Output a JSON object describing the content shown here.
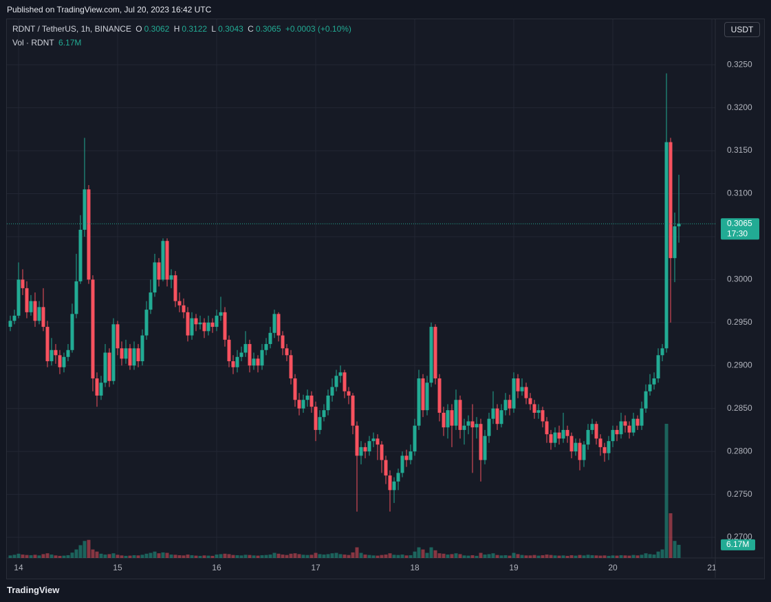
{
  "published": "Published on TradingView.com, Jul 20, 2023 16:42 UTC",
  "brand": "TradingView",
  "chart_data": {
    "type": "candlestick",
    "title": "RDNT / TetherUS, 1h, BINANCE",
    "ohlc_labels": [
      "O",
      "H",
      "L",
      "C"
    ],
    "change": "+0.0003 (+0.10%)",
    "volume_title": "Vol · RDNT",
    "volume_label": "6.17M",
    "currency": "USDT",
    "countdown": "17:30",
    "up_color": "#22ab94",
    "down_color": "#f7525f",
    "grid": true,
    "xlim": [
      -2.83,
      168.83
    ],
    "xticks": [
      {
        "value": 0,
        "label": "14"
      },
      {
        "value": 24,
        "label": "15"
      },
      {
        "value": 48,
        "label": "16"
      },
      {
        "value": 72,
        "label": "17"
      },
      {
        "value": 96,
        "label": "18"
      },
      {
        "value": 120,
        "label": "19"
      },
      {
        "value": 144,
        "label": "20"
      },
      {
        "value": 168,
        "label": "21"
      }
    ],
    "ylim": [
      0.2676,
      0.3303
    ],
    "yticks": [
      {
        "value": 0.27,
        "label": "0.2700"
      },
      {
        "value": 0.275,
        "label": "0.2750"
      },
      {
        "value": 0.28,
        "label": "0.2800"
      },
      {
        "value": 0.285,
        "label": "0.2850"
      },
      {
        "value": 0.29,
        "label": "0.2900"
      },
      {
        "value": 0.295,
        "label": "0.2950"
      },
      {
        "value": 0.3,
        "label": "0.3000"
      },
      {
        "value": 0.305,
        "label": "0.3050"
      },
      {
        "value": 0.31,
        "label": "0.3100"
      },
      {
        "value": 0.315,
        "label": "0.3150"
      },
      {
        "value": 0.32,
        "label": "0.3200"
      },
      {
        "value": 0.325,
        "label": "0.3250"
      }
    ],
    "x": [
      -2,
      -1,
      0,
      1,
      2,
      3,
      4,
      5,
      6,
      7,
      8,
      9,
      10,
      11,
      12,
      13,
      14,
      15,
      16,
      17,
      18,
      19,
      20,
      21,
      22,
      23,
      24,
      25,
      26,
      27,
      28,
      29,
      30,
      31,
      32,
      33,
      34,
      35,
      36,
      37,
      38,
      39,
      40,
      41,
      42,
      43,
      44,
      45,
      46,
      47,
      48,
      49,
      50,
      51,
      52,
      53,
      54,
      55,
      56,
      57,
      58,
      59,
      60,
      61,
      62,
      63,
      64,
      65,
      66,
      67,
      68,
      69,
      70,
      71,
      72,
      73,
      74,
      75,
      76,
      77,
      78,
      79,
      80,
      81,
      82,
      83,
      84,
      85,
      86,
      87,
      88,
      89,
      90,
      91,
      92,
      93,
      94,
      95,
      96,
      97,
      98,
      99,
      100,
      101,
      102,
      103,
      104,
      105,
      106,
      107,
      108,
      109,
      110,
      111,
      112,
      113,
      114,
      115,
      116,
      117,
      118,
      119,
      120,
      121,
      122,
      123,
      124,
      125,
      126,
      127,
      128,
      129,
      130,
      131,
      132,
      133,
      134,
      135,
      136,
      137,
      138,
      139,
      140,
      141,
      142,
      143,
      144,
      145,
      146,
      147,
      148,
      149,
      150,
      151,
      152,
      153,
      154,
      155,
      156,
      157,
      158,
      159,
      160
    ],
    "open": [
      0.2945,
      0.2952,
      0.2958,
      0.3,
      0.299,
      0.2962,
      0.2975,
      0.2952,
      0.2968,
      0.2945,
      0.2905,
      0.2918,
      0.2912,
      0.2898,
      0.291,
      0.2918,
      0.296,
      0.2998,
      0.3058,
      0.3105,
      0.3,
      0.2885,
      0.2865,
      0.288,
      0.2915,
      0.2882,
      0.2948,
      0.292,
      0.2908,
      0.292,
      0.29,
      0.292,
      0.2905,
      0.2935,
      0.2965,
      0.2985,
      0.302,
      0.3,
      0.3045,
      0.3,
      0.3005,
      0.2975,
      0.297,
      0.2962,
      0.2935,
      0.2955,
      0.2948,
      0.295,
      0.294,
      0.295,
      0.2945,
      0.2958,
      0.2962,
      0.293,
      0.2905,
      0.2898,
      0.291,
      0.2915,
      0.2925,
      0.29,
      0.2908,
      0.29,
      0.2918,
      0.2925,
      0.2938,
      0.296,
      0.2935,
      0.292,
      0.2912,
      0.2885,
      0.286,
      0.285,
      0.286,
      0.2865,
      0.2852,
      0.2825,
      0.284,
      0.2848,
      0.2865,
      0.2875,
      0.2888,
      0.2892,
      0.287,
      0.2865,
      0.283,
      0.2795,
      0.2805,
      0.28,
      0.2812,
      0.2815,
      0.2808,
      0.279,
      0.2772,
      0.2755,
      0.2765,
      0.2775,
      0.2795,
      0.279,
      0.28,
      0.283,
      0.2885,
      0.2848,
      0.288,
      0.2945,
      0.2885,
      0.2845,
      0.2828,
      0.2848,
      0.283,
      0.286,
      0.2825,
      0.283,
      0.2835,
      0.2828,
      0.2832,
      0.279,
      0.2818,
      0.2838,
      0.285,
      0.2832,
      0.2848,
      0.286,
      0.285,
      0.2885,
      0.287,
      0.2875,
      0.2862,
      0.2855,
      0.2845,
      0.2848,
      0.2835,
      0.282,
      0.281,
      0.2822,
      0.2815,
      0.2825,
      0.2818,
      0.28,
      0.281,
      0.279,
      0.2808,
      0.2825,
      0.2832,
      0.2815,
      0.2805,
      0.2798,
      0.2812,
      0.2825,
      0.282,
      0.2835,
      0.283,
      0.2822,
      0.2838,
      0.283,
      0.285,
      0.287,
      0.2878,
      0.2885,
      0.2912,
      0.292,
      0.316,
      0.3025,
      0.3062
    ],
    "high": [
      0.2958,
      0.2965,
      0.302,
      0.3012,
      0.2998,
      0.2982,
      0.2985,
      0.2975,
      0.299,
      0.2952,
      0.2932,
      0.2925,
      0.2918,
      0.2915,
      0.2925,
      0.2972,
      0.303,
      0.3075,
      0.3165,
      0.311,
      0.3005,
      0.2892,
      0.2888,
      0.2925,
      0.292,
      0.2955,
      0.2952,
      0.2928,
      0.293,
      0.2925,
      0.2928,
      0.2925,
      0.2942,
      0.2975,
      0.3,
      0.303,
      0.3025,
      0.3048,
      0.3048,
      0.3012,
      0.301,
      0.2985,
      0.2978,
      0.2968,
      0.2962,
      0.296,
      0.2958,
      0.2955,
      0.2958,
      0.2955,
      0.2965,
      0.298,
      0.2968,
      0.2935,
      0.2912,
      0.2918,
      0.2922,
      0.294,
      0.293,
      0.2915,
      0.2912,
      0.2925,
      0.2932,
      0.2945,
      0.2965,
      0.2962,
      0.294,
      0.2925,
      0.2918,
      0.289,
      0.2868,
      0.2866,
      0.2872,
      0.287,
      0.2858,
      0.2848,
      0.2855,
      0.2872,
      0.2885,
      0.2895,
      0.29,
      0.2895,
      0.2875,
      0.2868,
      0.2835,
      0.2812,
      0.281,
      0.2818,
      0.2822,
      0.282,
      0.2812,
      0.2795,
      0.2778,
      0.277,
      0.278,
      0.28,
      0.2802,
      0.2808,
      0.2838,
      0.2895,
      0.289,
      0.2888,
      0.295,
      0.2948,
      0.289,
      0.2852,
      0.2855,
      0.2855,
      0.2872,
      0.2865,
      0.2838,
      0.2842,
      0.2855,
      0.284,
      0.2838,
      0.2825,
      0.2845,
      0.287,
      0.2855,
      0.2855,
      0.2868,
      0.2866,
      0.2892,
      0.289,
      0.2885,
      0.288,
      0.2868,
      0.286,
      0.2855,
      0.2852,
      0.284,
      0.2825,
      0.2828,
      0.283,
      0.2845,
      0.283,
      0.2822,
      0.2815,
      0.2815,
      0.2812,
      0.2832,
      0.2838,
      0.2835,
      0.282,
      0.281,
      0.2818,
      0.283,
      0.283,
      0.2845,
      0.2842,
      0.2835,
      0.2845,
      0.2842,
      0.2858,
      0.2878,
      0.289,
      0.2892,
      0.292,
      0.2925,
      0.324,
      0.3165,
      0.3078,
      0.3122
    ],
    "low": [
      0.294,
      0.2948,
      0.2955,
      0.2982,
      0.2955,
      0.2958,
      0.2945,
      0.2948,
      0.294,
      0.2898,
      0.29,
      0.2902,
      0.289,
      0.2892,
      0.2905,
      0.2915,
      0.2955,
      0.2995,
      0.305,
      0.2995,
      0.287,
      0.2852,
      0.286,
      0.2875,
      0.2875,
      0.2878,
      0.2912,
      0.29,
      0.2902,
      0.2895,
      0.2895,
      0.2898,
      0.29,
      0.293,
      0.296,
      0.298,
      0.2992,
      0.2998,
      0.2992,
      0.299,
      0.2968,
      0.2962,
      0.2955,
      0.2928,
      0.293,
      0.294,
      0.2942,
      0.2932,
      0.2935,
      0.2938,
      0.294,
      0.2952,
      0.2922,
      0.2898,
      0.289,
      0.2892,
      0.2905,
      0.291,
      0.2892,
      0.2895,
      0.2892,
      0.2895,
      0.2912,
      0.292,
      0.2932,
      0.2928,
      0.2912,
      0.2905,
      0.2878,
      0.2852,
      0.2842,
      0.2845,
      0.2852,
      0.2845,
      0.2812,
      0.282,
      0.2835,
      0.2842,
      0.2858,
      0.287,
      0.288,
      0.2862,
      0.2855,
      0.282,
      0.273,
      0.2785,
      0.2792,
      0.2795,
      0.2805,
      0.279,
      0.2775,
      0.2762,
      0.273,
      0.274,
      0.2755,
      0.277,
      0.2782,
      0.2785,
      0.2795,
      0.2825,
      0.284,
      0.2842,
      0.2875,
      0.2878,
      0.2835,
      0.2818,
      0.2815,
      0.2805,
      0.2825,
      0.2815,
      0.2808,
      0.282,
      0.2775,
      0.2815,
      0.2765,
      0.2785,
      0.281,
      0.2832,
      0.2825,
      0.2828,
      0.2842,
      0.2842,
      0.2845,
      0.2862,
      0.2865,
      0.2855,
      0.2848,
      0.2838,
      0.2838,
      0.2828,
      0.281,
      0.2802,
      0.2805,
      0.2808,
      0.281,
      0.281,
      0.2792,
      0.2795,
      0.2778,
      0.2782,
      0.2802,
      0.282,
      0.2808,
      0.2795,
      0.2788,
      0.279,
      0.2805,
      0.2812,
      0.2815,
      0.2822,
      0.2815,
      0.2818,
      0.2825,
      0.2825,
      0.2845,
      0.2865,
      0.2872,
      0.288,
      0.2905,
      0.2915,
      0.295,
      0.2997,
      0.3043
    ],
    "close": [
      0.2952,
      0.2958,
      0.3,
      0.299,
      0.2962,
      0.2975,
      0.2952,
      0.2968,
      0.2945,
      0.2905,
      0.2918,
      0.2912,
      0.2898,
      0.291,
      0.2918,
      0.296,
      0.2998,
      0.3058,
      0.3105,
      0.3,
      0.2885,
      0.2865,
      0.288,
      0.2915,
      0.2882,
      0.2948,
      0.292,
      0.2908,
      0.292,
      0.29,
      0.292,
      0.2905,
      0.2935,
      0.2965,
      0.2985,
      0.302,
      0.3,
      0.3045,
      0.3,
      0.3005,
      0.2975,
      0.297,
      0.2962,
      0.2935,
      0.2955,
      0.2948,
      0.295,
      0.294,
      0.295,
      0.2945,
      0.2958,
      0.2962,
      0.293,
      0.2905,
      0.2898,
      0.291,
      0.2915,
      0.2925,
      0.29,
      0.2908,
      0.29,
      0.2918,
      0.2925,
      0.2938,
      0.296,
      0.2935,
      0.292,
      0.2912,
      0.2885,
      0.286,
      0.285,
      0.286,
      0.2865,
      0.2852,
      0.2825,
      0.284,
      0.2848,
      0.2865,
      0.2875,
      0.2888,
      0.2892,
      0.287,
      0.2865,
      0.283,
      0.2795,
      0.2805,
      0.28,
      0.2812,
      0.2815,
      0.2808,
      0.279,
      0.2772,
      0.2755,
      0.2765,
      0.2775,
      0.2795,
      0.279,
      0.28,
      0.283,
      0.2885,
      0.2848,
      0.288,
      0.2945,
      0.2885,
      0.2845,
      0.2828,
      0.2848,
      0.283,
      0.286,
      0.2825,
      0.283,
      0.2835,
      0.2828,
      0.2832,
      0.279,
      0.2818,
      0.2838,
      0.285,
      0.2832,
      0.2848,
      0.286,
      0.285,
      0.2885,
      0.287,
      0.2875,
      0.2862,
      0.2855,
      0.2845,
      0.2848,
      0.2835,
      0.282,
      0.281,
      0.2822,
      0.2815,
      0.2825,
      0.2818,
      0.28,
      0.281,
      0.279,
      0.2808,
      0.2825,
      0.2832,
      0.2815,
      0.2805,
      0.2798,
      0.2812,
      0.2825,
      0.282,
      0.2835,
      0.283,
      0.2822,
      0.2838,
      0.283,
      0.285,
      0.287,
      0.2878,
      0.2885,
      0.2912,
      0.292,
      0.316,
      0.3025,
      0.3062,
      0.3065
    ],
    "volume": [
      1.2,
      1.5,
      2,
      1.6,
      1.4,
      1.3,
      1.5,
      1.2,
      1.8,
      2.2,
      1.6,
      1.2,
      1,
      1.1,
      1.3,
      2.5,
      4,
      6,
      8,
      8.5,
      4,
      3,
      2,
      1.6,
      1.8,
      2.2,
      1.5,
      1.2,
      1,
      1.1,
      1.3,
      1.2,
      1.5,
      2,
      2.4,
      3,
      2.2,
      2.6,
      2.4,
      1.6,
      1.5,
      1.3,
      1.2,
      1.6,
      1.3,
      1.1,
      1,
      1.2,
      1.1,
      1,
      1.6,
      1.8,
      2,
      1.8,
      1.4,
      1.3,
      1.2,
      1.5,
      1.4,
      1.2,
      1.1,
      1.3,
      1.4,
      1.6,
      2.4,
      2,
      1.6,
      1.4,
      2,
      2.2,
      1.8,
      1.5,
      1.4,
      1.5,
      2.4,
      1.8,
      1.6,
      1.8,
      2.2,
      2.4,
      1.8,
      1.6,
      1.4,
      2.6,
      5,
      2.4,
      1.6,
      1.4,
      1.2,
      1.1,
      1.4,
      1.6,
      2.2,
      1.5,
      1.4,
      1.6,
      1.2,
      1.3,
      3,
      5,
      4,
      2.4,
      5,
      3.6,
      2.2,
      2,
      1.6,
      1.8,
      2.2,
      1.8,
      1.2,
      1.1,
      1.3,
      1,
      2.4,
      1.6,
      1.8,
      2.2,
      1.4,
      1.2,
      1.3,
      1.1,
      2.4,
      1.8,
      1.4,
      1.2,
      1.2,
      1.4,
      1.1,
      1.3,
      1.6,
      1.4,
      1.2,
      1.1,
      1.2,
      1,
      1.3,
      1.1,
      1.4,
      1.2,
      1.5,
      1.3,
      1.2,
      1.1,
      1.2,
      1,
      1.2,
      1.1,
      1.3,
      1.2,
      1.1,
      1.4,
      1.2,
      1.5,
      2.2,
      1.8,
      1.6,
      3,
      4,
      63,
      21,
      8,
      6.17
    ]
  }
}
